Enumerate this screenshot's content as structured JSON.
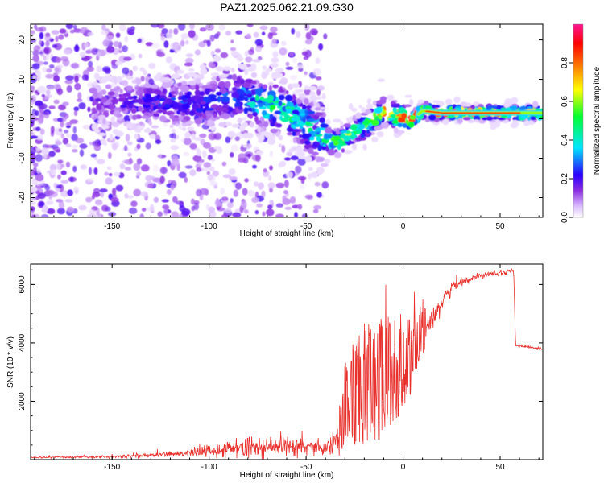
{
  "title": "PAZ1.2025.062.21.09.G30",
  "chart_data": [
    {
      "type": "heatmap",
      "title": "PAZ1.2025.062.21.09.G30",
      "xlabel": "Height of straight line (km)",
      "ylabel": "Frequency (Hz)",
      "xlim": [
        -192,
        72
      ],
      "ylim": [
        -25,
        24
      ],
      "xticks": [
        -150,
        -100,
        -50,
        0,
        50
      ],
      "yticks": [
        -20,
        -10,
        0,
        10,
        20
      ],
      "xtick_labels": [
        "-150",
        "-100",
        "-50",
        "0",
        "50"
      ],
      "ytick_labels": [
        "-20",
        "-10",
        "0",
        "10",
        "20"
      ],
      "colorbar": {
        "label": "Normalized spectral amplitude",
        "range": [
          0,
          1
        ],
        "ticks": [
          0.0,
          0.2,
          0.4,
          0.6,
          0.8
        ],
        "tick_labels": [
          "0.0",
          "0.2",
          "0.4",
          "0.6",
          "0.8"
        ],
        "colormap": [
          "#ffffff",
          "#d9b8ff",
          "#8a2be2",
          "#2a00ff",
          "#00e5ff",
          "#00ff33",
          "#ffff00",
          "#ff7f00",
          "#ff0000",
          "#ff1493"
        ]
      },
      "ridge": {
        "x": [
          -155,
          -140,
          -120,
          -100,
          -85,
          -80,
          -75,
          -65,
          -55,
          -45,
          -40,
          -35,
          -30,
          -25,
          -20,
          -15,
          -10,
          -5,
          0,
          5,
          10,
          20,
          40,
          60,
          72
        ],
        "y": [
          4,
          4,
          4,
          4,
          6,
          5,
          4,
          3,
          0,
          -3,
          -5,
          -6,
          -5,
          -3,
          -2,
          0,
          2,
          1,
          0,
          0,
          2,
          1.5,
          1.5,
          1.5,
          1.5
        ],
        "amplitude": [
          0.15,
          0.2,
          0.25,
          0.25,
          0.3,
          0.35,
          0.45,
          0.5,
          0.45,
          0.45,
          0.5,
          0.55,
          0.6,
          0.55,
          0.55,
          0.7,
          0.75,
          0.75,
          0.9,
          0.9,
          0.85,
          0.85,
          0.85,
          0.85,
          0.85
        ]
      },
      "low_amplitude_scatter": {
        "x_range": [
          -192,
          -40
        ],
        "y_range": [
          -25,
          24
        ],
        "amplitude_range": [
          0.02,
          0.2
        ]
      }
    },
    {
      "type": "line",
      "title": "",
      "xlabel": "Height of straight line (km)",
      "ylabel": "SNR (10 * v/v)",
      "xlim": [
        -192,
        72
      ],
      "ylim": [
        0,
        6700
      ],
      "xticks": [
        -150,
        -100,
        -50,
        0,
        50
      ],
      "xtick_labels": [
        "-150",
        "-100",
        "-50",
        "0",
        "50"
      ],
      "yticks": [
        2000,
        4000,
        6000
      ],
      "ytick_labels": [
        "2000",
        "4000",
        "6000"
      ],
      "series": [
        {
          "name": "SNR",
          "color": "#e8302c",
          "x": [
            -192,
            -180,
            -170,
            -160,
            -150,
            -140,
            -130,
            -120,
            -110,
            -100,
            -90,
            -80,
            -70,
            -60,
            -50,
            -40,
            -35,
            -30,
            -25,
            -20,
            -15,
            -10,
            -5,
            0,
            5,
            10,
            15,
            20,
            25,
            30,
            35,
            40,
            45,
            50,
            55,
            57,
            58,
            60,
            65,
            72
          ],
          "y": [
            80,
            80,
            80,
            90,
            100,
            120,
            150,
            200,
            250,
            300,
            350,
            400,
            450,
            500,
            450,
            450,
            600,
            1800,
            2300,
            2500,
            2700,
            2800,
            3000,
            3200,
            3600,
            4300,
            4900,
            5400,
            5900,
            6100,
            6200,
            6300,
            6400,
            6400,
            6450,
            6450,
            3900,
            3900,
            3850,
            3800
          ],
          "noise_amplitude": [
            30,
            30,
            30,
            40,
            50,
            60,
            80,
            100,
            150,
            200,
            300,
            350,
            350,
            350,
            300,
            300,
            400,
            1500,
            1800,
            2000,
            2200,
            2000,
            1800,
            1500,
            1300,
            800,
            500,
            300,
            250,
            150,
            120,
            100,
            100,
            100,
            80,
            80,
            50,
            50,
            50,
            50
          ]
        }
      ]
    }
  ]
}
